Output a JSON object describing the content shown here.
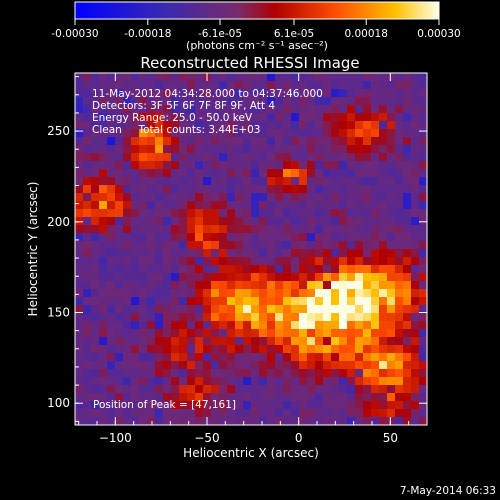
{
  "chart_data": {
    "type": "heatmap",
    "title": "Reconstructed RHESSI Image",
    "xlabel": "Heliocentric X (arcsec)",
    "ylabel": "Heliocentric Y (arcsec)",
    "xlim": [
      -122,
      70
    ],
    "ylim": [
      88,
      282
    ],
    "xticks": [
      -100,
      -50,
      0,
      50
    ],
    "xtick_labels": [
      "−100",
      "−50",
      "0",
      "50"
    ],
    "yticks": [
      100,
      150,
      200,
      250
    ],
    "ytick_labels": [
      "100",
      "150",
      "200",
      "250"
    ],
    "colorbar": {
      "range": [
        -0.0003,
        0.0003
      ],
      "ticks": [
        -0.0003,
        -0.00018,
        -6.1e-05,
        6.1e-05,
        0.00018,
        0.0003
      ],
      "tick_labels": [
        "-0.00030",
        "-0.00018",
        "-6.1e-05",
        "6.1e-05",
        "0.00018",
        "0.00030"
      ],
      "unit_label": "(photons cm⁻² s⁻¹ asec⁻²)",
      "colormap": [
        "#0000ff",
        "#4a2a8a",
        "#7a2a6a",
        "#c01000",
        "#ff7000",
        "#ffd000",
        "#ffffe0"
      ]
    },
    "annotations": [
      "11-May-2012 04:34:28.000 to 04:37:46.000",
      "Detectors: 3F 5F 6F 7F 8F 9F, Att 4",
      "Energy Range: 25.0 - 50.0 keV",
      "Clean     Total counts: 3.44E+03",
      "Position of Peak = [47,161]"
    ],
    "peak": {
      "x": 47,
      "y": 161
    },
    "hotspots": [
      {
        "x": 35,
        "y": 160,
        "sx": 22,
        "sy": 14,
        "amp": 1.0
      },
      {
        "x": 0,
        "y": 150,
        "sx": 22,
        "sy": 12,
        "amp": 0.65
      },
      {
        "x": -35,
        "y": 155,
        "sx": 14,
        "sy": 14,
        "amp": 0.6
      },
      {
        "x": 20,
        "y": 128,
        "sx": 22,
        "sy": 10,
        "amp": 0.5
      },
      {
        "x": 50,
        "y": 118,
        "sx": 12,
        "sy": 10,
        "amp": 0.6
      },
      {
        "x": -80,
        "y": 243,
        "sx": 8,
        "sy": 10,
        "amp": 0.75
      },
      {
        "x": -110,
        "y": 210,
        "sx": 12,
        "sy": 9,
        "amp": 0.7
      },
      {
        "x": -50,
        "y": 195,
        "sx": 10,
        "sy": 10,
        "amp": 0.5
      },
      {
        "x": -5,
        "y": 225,
        "sx": 10,
        "sy": 6,
        "amp": 0.5
      },
      {
        "x": 35,
        "y": 250,
        "sx": 12,
        "sy": 8,
        "amp": 0.5
      },
      {
        "x": -65,
        "y": 130,
        "sx": 10,
        "sy": 8,
        "amp": 0.4
      },
      {
        "x": -55,
        "y": 105,
        "sx": 10,
        "sy": 8,
        "amp": 0.35
      },
      {
        "x": 50,
        "y": 95,
        "sx": 12,
        "sy": 7,
        "amp": 0.3
      }
    ],
    "color_scale_label": "",
    "grid": false
  },
  "footer": {
    "date": "7-May-2014 06:33"
  }
}
